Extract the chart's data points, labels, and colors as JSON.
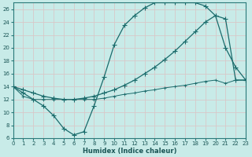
{
  "xlabel": "Humidex (Indice chaleur)",
  "bg_color": "#c8ebe8",
  "grid_color": "#e0f0ee",
  "line_color": "#1a6b6b",
  "xlim": [
    0,
    23
  ],
  "ylim": [
    6,
    27
  ],
  "yticks": [
    6,
    8,
    10,
    12,
    14,
    16,
    18,
    20,
    22,
    24,
    26
  ],
  "xticks": [
    0,
    1,
    2,
    3,
    4,
    5,
    6,
    7,
    8,
    9,
    10,
    11,
    12,
    13,
    14,
    15,
    16,
    17,
    18,
    19,
    20,
    21,
    22,
    23
  ],
  "line1_x": [
    0,
    1,
    2,
    3,
    4,
    5,
    6,
    7,
    8,
    9,
    10,
    11,
    12,
    13,
    14,
    15,
    16,
    17,
    18,
    19,
    20,
    21,
    22,
    23
  ],
  "line1_y": [
    14,
    13,
    12,
    11,
    9.5,
    7.5,
    6.5,
    7.0,
    11,
    15.5,
    20.5,
    23.5,
    25,
    26.2,
    27,
    27,
    27,
    27,
    27,
    26.5,
    25,
    20,
    17,
    15
  ],
  "line2_x": [
    0,
    1,
    2,
    3,
    4,
    5,
    6,
    7,
    8,
    9,
    10,
    11,
    12,
    13,
    14,
    15,
    16,
    17,
    18,
    19,
    20,
    21,
    22,
    23
  ],
  "line2_y": [
    14,
    13.5,
    13.0,
    12.5,
    12.2,
    12.0,
    12.0,
    12.2,
    12.5,
    13.0,
    13.5,
    14.2,
    15.0,
    16.0,
    17.0,
    18.2,
    19.5,
    21.0,
    22.5,
    24.0,
    25.0,
    24.5,
    15.0,
    15.0
  ],
  "line3_x": [
    0,
    1,
    2,
    3,
    4,
    5,
    6,
    7,
    8,
    9,
    10,
    11,
    12,
    13,
    14,
    15,
    16,
    17,
    18,
    19,
    20,
    21,
    22,
    23
  ],
  "line3_y": [
    14,
    12.5,
    12.0,
    12.0,
    12.0,
    12.0,
    12.0,
    12.0,
    12.0,
    12.2,
    12.5,
    12.8,
    13.0,
    13.3,
    13.5,
    13.8,
    14.0,
    14.2,
    14.5,
    14.8,
    15.0,
    14.5,
    15.0,
    15.0
  ]
}
